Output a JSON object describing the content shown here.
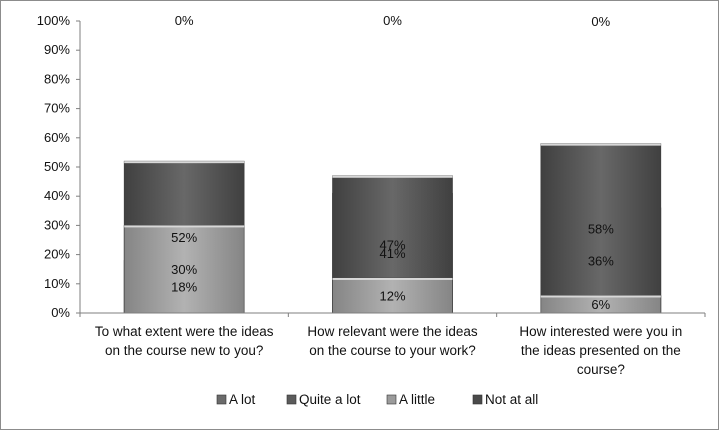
{
  "chart_data": {
    "type": "bar",
    "stacked": true,
    "categories": [
      [
        "To what extent were the ideas",
        "on the course new to you?"
      ],
      [
        "How relevant were the ideas",
        "on the course to your work?"
      ],
      [
        "How interested were you in",
        "the ideas presented on the",
        "course?"
      ]
    ],
    "series": [
      {
        "name": "A lot",
        "values": [
          18,
          41,
          36
        ],
        "labels": [
          "18%",
          "41%",
          "36%"
        ],
        "color": "#6b6b6b"
      },
      {
        "name": "Quite a lot",
        "values": [
          52,
          47,
          58
        ],
        "labels": [
          "52%",
          "47%",
          "58%"
        ],
        "color": "#5b5b5b"
      },
      {
        "name": "A little",
        "values": [
          30,
          12,
          6
        ],
        "labels": [
          "30%",
          "12%",
          "6%"
        ],
        "color": "#9b9b9b"
      },
      {
        "name": "Not at all",
        "values": [
          0,
          0,
          0
        ],
        "labels": [
          "0%",
          "0%",
          "0%"
        ],
        "color": "#4a4a4a"
      }
    ],
    "ylim": [
      0,
      100
    ],
    "yticks": [
      0,
      10,
      20,
      30,
      40,
      50,
      60,
      70,
      80,
      90,
      100
    ],
    "ytick_labels": [
      "0%",
      "10%",
      "20%",
      "30%",
      "40%",
      "50%",
      "60%",
      "70%",
      "80%",
      "90%",
      "100%"
    ],
    "grid": false,
    "legend_position": "bottom"
  }
}
